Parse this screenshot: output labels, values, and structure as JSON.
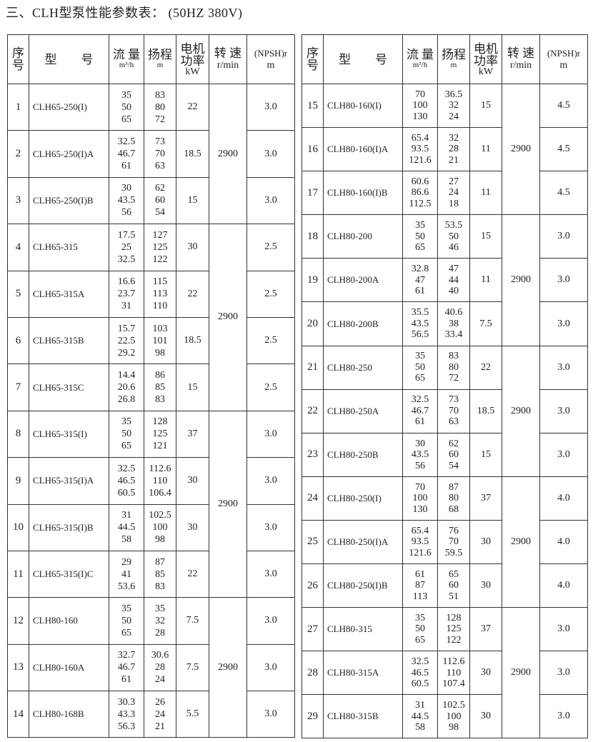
{
  "title": "三、CLH型泵性能参数表：  (50HZ  380V)",
  "headers": {
    "id": "序号",
    "model": "型　　号",
    "flow": "流 量",
    "flow_unit": "m³/h",
    "head": "扬程",
    "head_unit": "m",
    "power": "电机功率",
    "power_unit": "kW",
    "speed": "转 速",
    "speed_unit": "r/min",
    "npsh": "(NPSH)r",
    "npsh_unit": "m"
  },
  "left": {
    "speed_groups": [
      {
        "span": 3,
        "value": "2900"
      },
      {
        "span": 4,
        "value": "2900"
      },
      {
        "span": 4,
        "value": "2900"
      },
      {
        "span": 3,
        "value": "2900"
      }
    ],
    "rows": [
      {
        "id": "1",
        "model": "CLH65-250(I)",
        "flow": [
          "35",
          "50",
          "65"
        ],
        "head": [
          "83",
          "80",
          "72"
        ],
        "power": "22",
        "npsh": "3.0"
      },
      {
        "id": "2",
        "model": "CLH65-250(I)A",
        "flow": [
          "32.5",
          "46.7",
          "61"
        ],
        "head": [
          "73",
          "70",
          "63"
        ],
        "power": "18.5",
        "npsh": "3.0"
      },
      {
        "id": "3",
        "model": "CLH65-250(I)B",
        "flow": [
          "30",
          "43.5",
          "56"
        ],
        "head": [
          "62",
          "60",
          "54"
        ],
        "power": "15",
        "npsh": "3.0"
      },
      {
        "id": "4",
        "model": "CLH65-315",
        "flow": [
          "17.5",
          "25",
          "32.5"
        ],
        "head": [
          "127",
          "125",
          "122"
        ],
        "power": "30",
        "npsh": "2.5"
      },
      {
        "id": "5",
        "model": "CLH65-315A",
        "flow": [
          "16.6",
          "23.7",
          "31"
        ],
        "head": [
          "115",
          "113",
          "110"
        ],
        "power": "22",
        "npsh": "2.5"
      },
      {
        "id": "6",
        "model": "CLH65-315B",
        "flow": [
          "15.7",
          "22.5",
          "29.2"
        ],
        "head": [
          "103",
          "101",
          "98"
        ],
        "power": "18.5",
        "npsh": "2.5"
      },
      {
        "id": "7",
        "model": "CLH65-315C",
        "flow": [
          "14.4",
          "20.6",
          "26.8"
        ],
        "head": [
          "86",
          "85",
          "83"
        ],
        "power": "15",
        "npsh": "2.5"
      },
      {
        "id": "8",
        "model": "CLH65-315(I)",
        "flow": [
          "35",
          "50",
          "65"
        ],
        "head": [
          "128",
          "125",
          "121"
        ],
        "power": "37",
        "npsh": "3.0"
      },
      {
        "id": "9",
        "model": "CLH65-315(I)A",
        "flow": [
          "32.5",
          "46.5",
          "60.5"
        ],
        "head": [
          "112.6",
          "110",
          "106.4"
        ],
        "power": "30",
        "npsh": "3.0"
      },
      {
        "id": "10",
        "model": "CLH65-315(I)B",
        "flow": [
          "31",
          "44.5",
          "58"
        ],
        "head": [
          "102.5",
          "100",
          "98"
        ],
        "power": "30",
        "npsh": "3.0"
      },
      {
        "id": "11",
        "model": "CLH65-315(I)C",
        "flow": [
          "29",
          "41",
          "53.6"
        ],
        "head": [
          "87",
          "85",
          "83"
        ],
        "power": "22",
        "npsh": "3.0"
      },
      {
        "id": "12",
        "model": "CLH80-160",
        "flow": [
          "35",
          "50",
          "65"
        ],
        "head": [
          "35",
          "32",
          "28"
        ],
        "power": "7.5",
        "npsh": "3.0"
      },
      {
        "id": "13",
        "model": "CLH80-160A",
        "flow": [
          "32.7",
          "46.7",
          "61"
        ],
        "head": [
          "30.6",
          "28",
          "24"
        ],
        "power": "7.5",
        "npsh": "3.0"
      },
      {
        "id": "14",
        "model": "CLH80-168B",
        "flow": [
          "30.3",
          "43.3",
          "56.3"
        ],
        "head": [
          "26",
          "24",
          "21"
        ],
        "power": "5.5",
        "npsh": "3.0"
      }
    ]
  },
  "right": {
    "speed_groups": [
      {
        "span": 3,
        "value": "2900"
      },
      {
        "span": 3,
        "value": "2900"
      },
      {
        "span": 3,
        "value": "2900"
      },
      {
        "span": 3,
        "value": "2900"
      },
      {
        "span": 3,
        "value": "2900"
      }
    ],
    "rows": [
      {
        "id": "15",
        "model": "CLH80-160(I)",
        "flow": [
          "70",
          "100",
          "130"
        ],
        "head": [
          "36.5",
          "32",
          "24"
        ],
        "power": "15",
        "npsh": "4.5"
      },
      {
        "id": "16",
        "model": "CLH80-160(I)A",
        "flow": [
          "65.4",
          "93.5",
          "121.6"
        ],
        "head": [
          "32",
          "28",
          "21"
        ],
        "power": "11",
        "npsh": "4.5"
      },
      {
        "id": "17",
        "model": "CLH80-160(I)B",
        "flow": [
          "60.6",
          "86.6",
          "112.5"
        ],
        "head": [
          "27",
          "24",
          "18"
        ],
        "power": "11",
        "npsh": "4.5"
      },
      {
        "id": "18",
        "model": "CLH80-200",
        "flow": [
          "35",
          "50",
          "65"
        ],
        "head": [
          "53.5",
          "50",
          "46"
        ],
        "power": "15",
        "npsh": "3.0"
      },
      {
        "id": "19",
        "model": "CLH80-200A",
        "flow": [
          "32.8",
          "47",
          "61"
        ],
        "head": [
          "47",
          "44",
          "40"
        ],
        "power": "11",
        "npsh": "3.0"
      },
      {
        "id": "20",
        "model": "CLH80-200B",
        "flow": [
          "35.5",
          "43.5",
          "56.5"
        ],
        "head": [
          "40.6",
          "38",
          "33.4"
        ],
        "power": "7.5",
        "npsh": "3.0"
      },
      {
        "id": "21",
        "model": "CLH80-250",
        "flow": [
          "35",
          "50",
          "65"
        ],
        "head": [
          "83",
          "80",
          "72"
        ],
        "power": "22",
        "npsh": "3.0"
      },
      {
        "id": "22",
        "model": "CLH80-250A",
        "flow": [
          "32.5",
          "46.7",
          "61"
        ],
        "head": [
          "73",
          "70",
          "63"
        ],
        "power": "18.5",
        "npsh": "3.0"
      },
      {
        "id": "23",
        "model": "CLH80-250B",
        "flow": [
          "30",
          "43.5",
          "56"
        ],
        "head": [
          "62",
          "60",
          "54"
        ],
        "power": "15",
        "npsh": "3.0"
      },
      {
        "id": "24",
        "model": "CLH80-250(I)",
        "flow": [
          "70",
          "100",
          "130"
        ],
        "head": [
          "87",
          "80",
          "68"
        ],
        "power": "37",
        "npsh": "4.0"
      },
      {
        "id": "25",
        "model": "CLH80-250(I)A",
        "flow": [
          "65.4",
          "93.5",
          "121.6"
        ],
        "head": [
          "76",
          "70",
          "59.5"
        ],
        "power": "30",
        "npsh": "4.0"
      },
      {
        "id": "26",
        "model": "CLH80-250(I)B",
        "flow": [
          "61",
          "87",
          "113"
        ],
        "head": [
          "65",
          "60",
          "51"
        ],
        "power": "30",
        "npsh": "4.0"
      },
      {
        "id": "27",
        "model": "CLH80-315",
        "flow": [
          "35",
          "50",
          "65"
        ],
        "head": [
          "128",
          "125",
          "122"
        ],
        "power": "37",
        "npsh": "3.0"
      },
      {
        "id": "28",
        "model": "CLH80-315A",
        "flow": [
          "32.5",
          "46.5",
          "60.5"
        ],
        "head": [
          "112.6",
          "110",
          "107.4"
        ],
        "power": "30",
        "npsh": "3.0"
      },
      {
        "id": "29",
        "model": "CLH80-315B",
        "flow": [
          "31",
          "44.5",
          "58"
        ],
        "head": [
          "102.5",
          "100",
          "98"
        ],
        "power": "30",
        "npsh": "3.0"
      }
    ]
  }
}
